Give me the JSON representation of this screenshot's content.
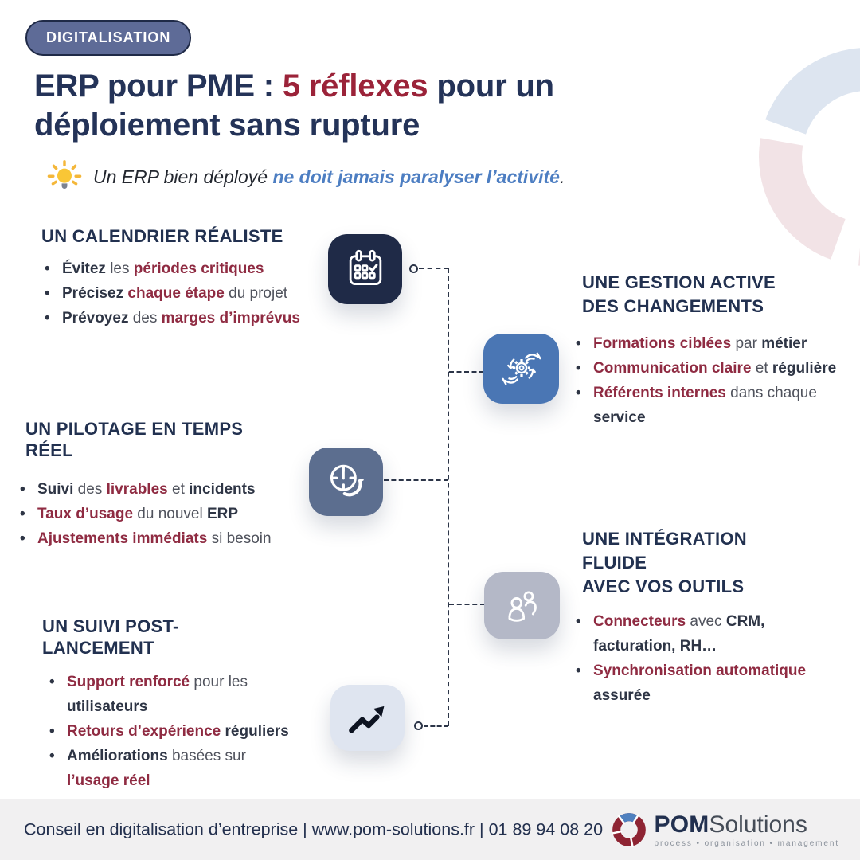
{
  "badge": {
    "label": "DIGITALISATION"
  },
  "title": {
    "lines": [
      [
        {
          "t": "ERP pour PME : ",
          "c": "navy"
        },
        {
          "t": "5 réflexes",
          "c": "red"
        },
        {
          "t": " pour un",
          "c": "navy"
        }
      ],
      [
        {
          "t": "déploiement sans rupture",
          "c": "navy"
        }
      ]
    ]
  },
  "subtitle": {
    "prefix": "Un ERP bien déployé ",
    "highlight": "ne doit jamais paralyser l’activité",
    "suffix": "."
  },
  "bullet_char": "•",
  "sections": [
    {
      "id": "calendrier",
      "heading_lines": [
        "UN CALENDRIER RÉALISTE"
      ],
      "icon": "calendar-icon",
      "icon_bg": "#1f2a47",
      "bullets": [
        [
          {
            "t": "Évitez",
            "s": "bd"
          },
          {
            "t": " les ",
            "s": "n"
          },
          {
            "t": "périodes critiques",
            "s": "br"
          }
        ],
        [
          {
            "t": "Précisez",
            "s": "bd"
          },
          {
            "t": " ",
            "s": "n"
          },
          {
            "t": "chaque étape",
            "s": "br"
          },
          {
            "t": " du projet",
            "s": "n"
          }
        ],
        [
          {
            "t": "Prévoyez",
            "s": "bd"
          },
          {
            "t": " des ",
            "s": "n"
          },
          {
            "t": "marges d’imprévus",
            "s": "br"
          }
        ]
      ]
    },
    {
      "id": "gestion-changements",
      "heading_lines": [
        "UNE GESTION ACTIVE",
        "DES CHANGEMENTS"
      ],
      "icon": "hands-gear-icon",
      "icon_bg": "#4a76b4",
      "bullets": [
        [
          {
            "t": "Formations ciblées",
            "s": "br"
          },
          {
            "t": " par ",
            "s": "n"
          },
          {
            "t": "métier",
            "s": "bd"
          }
        ],
        [
          {
            "t": "Communication claire",
            "s": "br"
          },
          {
            "t": " et ",
            "s": "n"
          },
          {
            "t": "régulière",
            "s": "bd"
          }
        ],
        [
          {
            "t": "Référents internes",
            "s": "br"
          },
          {
            "t": " dans chaque ",
            "s": "n"
          },
          {
            "t": "service",
            "s": "bd"
          }
        ]
      ]
    },
    {
      "id": "pilotage",
      "heading_lines": [
        "UN PILOTAGE EN TEMPS RÉEL"
      ],
      "icon": "clock-history-icon",
      "icon_bg": "#5c6e8f",
      "bullets": [
        [
          {
            "t": "Suivi",
            "s": "bd"
          },
          {
            "t": " des ",
            "s": "n"
          },
          {
            "t": "livrables",
            "s": "br"
          },
          {
            "t": " et ",
            "s": "n"
          },
          {
            "t": "incidents",
            "s": "bd"
          }
        ],
        [
          {
            "t": "Taux d’usage",
            "s": "br"
          },
          {
            "t": " du nouvel ",
            "s": "n"
          },
          {
            "t": "ERP",
            "s": "bd"
          }
        ],
        [
          {
            "t": "Ajustements immédiats",
            "s": "br"
          },
          {
            "t": " si besoin",
            "s": "n"
          }
        ]
      ]
    },
    {
      "id": "integration",
      "heading_lines": [
        "UNE INTÉGRATION FLUIDE",
        "AVEC VOS OUTILS"
      ],
      "icon": "people-icon",
      "icon_bg": "#b4b8c7",
      "bullets": [
        [
          {
            "t": "Connecteurs",
            "s": "br"
          },
          {
            "t": " avec ",
            "s": "n"
          },
          {
            "t": "CRM, facturation, RH…",
            "s": "bd"
          }
        ],
        [
          {
            "t": "Synchronisation automatique",
            "s": "br"
          },
          {
            "t": " ",
            "s": "n"
          },
          {
            "t": "assurée",
            "s": "bd"
          }
        ]
      ]
    },
    {
      "id": "suivi-post-lancement",
      "heading_lines": [
        "UN SUIVI POST-LANCEMENT"
      ],
      "icon": "trending-up-icon",
      "icon_bg": "#dfe5f0",
      "bullets": [
        [
          {
            "t": "Support renforcé",
            "s": "br"
          },
          {
            "t": " pour les ",
            "s": "n"
          },
          {
            "t": "utilisateurs",
            "s": "bd"
          }
        ],
        [
          {
            "t": "Retours d’expérience",
            "s": "br"
          },
          {
            "t": " ",
            "s": "n"
          },
          {
            "t": "réguliers",
            "s": "bd"
          }
        ],
        [
          {
            "t": "Améliorations",
            "s": "bd"
          },
          {
            "t": " basées sur ",
            "s": "n"
          },
          {
            "t": "l’usage réel",
            "s": "br"
          }
        ]
      ]
    }
  ],
  "footer": {
    "line": "Conseil en digitalisation d’entreprise | www.pom-solutions.fr | 01 89 94 08 20",
    "brand": {
      "pom": "POM",
      "solutions": "Solutions",
      "tagline": "process • organisation • management"
    }
  },
  "colors": {
    "title_navy": "#243358",
    "title_red": "#9b2339",
    "heading_navy": "#223150",
    "bullet_red": "#8f2b42",
    "bullet_dark": "#2e3545",
    "bullet_gray": "#50535d",
    "subtitle_blue": "#4d7ec2",
    "badge_bg": "#5e6b97",
    "badge_border": "#1f2a47",
    "connector": "#2c3548",
    "card_navy": "#1f2a47",
    "card_blue": "#4a76b4",
    "card_slate": "#5c6e8f",
    "card_gray": "#b4b8c7",
    "card_light": "#dfe5f0",
    "footer_bg": "#f1f0f1",
    "deco_blue": "#dde5f0",
    "deco_pink": "#f2e3e6",
    "logo_red": "#8e2433",
    "logo_blue": "#4f80bf",
    "lightbulb_yellow": "#f9c636"
  }
}
